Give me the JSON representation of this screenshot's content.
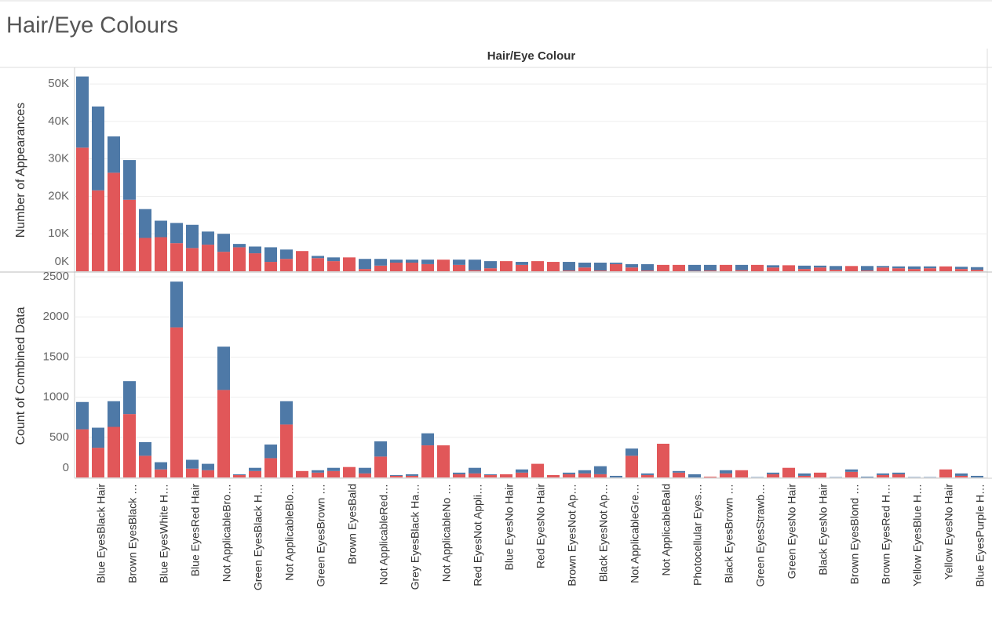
{
  "title": "Hair/Eye Colours",
  "header": "Hair/Eye Colour",
  "chart_data": [
    {
      "type": "bar",
      "stacked": true,
      "ylabel": "Number of Appearances",
      "ylim": [
        0,
        54000
      ],
      "yticks": [
        {
          "value": 0,
          "label": "0K"
        },
        {
          "value": 10000,
          "label": "10K"
        },
        {
          "value": 20000,
          "label": "20K"
        },
        {
          "value": 30000,
          "label": "30K"
        },
        {
          "value": 40000,
          "label": "40K"
        },
        {
          "value": 50000,
          "label": "50K"
        }
      ],
      "grid": true,
      "series": [
        {
          "color": "#e15759",
          "values": [
            33000,
            21600,
            26300,
            19100,
            8900,
            9100,
            7500,
            6200,
            7100,
            5200,
            6400,
            4800,
            2500,
            3300,
            5400,
            3500,
            2700,
            3700,
            600,
            1500,
            2300,
            2300,
            1900,
            3100,
            1700,
            300,
            800,
            2700,
            1700,
            2700,
            2500,
            200,
            1000,
            200,
            1900,
            1000,
            200,
            1700,
            1700,
            100,
            200,
            1700,
            300,
            1700,
            1000,
            1600,
            600,
            1000,
            400,
            1400,
            200,
            1000,
            800,
            600,
            800,
            1300,
            600,
            400
          ]
        },
        {
          "color": "#4e79a7",
          "values": [
            19000,
            22400,
            9700,
            10600,
            7700,
            4400,
            5400,
            6200,
            3500,
            4800,
            900,
            1800,
            3900,
            2500,
            0,
            600,
            1000,
            0,
            2700,
            1800,
            800,
            800,
            1200,
            0,
            1400,
            2800,
            1900,
            0,
            800,
            0,
            0,
            2300,
            1300,
            2100,
            400,
            900,
            1700,
            0,
            0,
            1600,
            1500,
            0,
            1400,
            0,
            600,
            0,
            900,
            500,
            1000,
            0,
            1200,
            400,
            500,
            700,
            500,
            0,
            600,
            700
          ]
        }
      ]
    },
    {
      "type": "bar",
      "stacked": true,
      "ylabel": "Count of Combined Data",
      "ylim": [
        0,
        2530
      ],
      "yticks": [
        0,
        500,
        1000,
        1500,
        2000,
        2500
      ],
      "grid": true,
      "categories": [
        null,
        "Blue EyesBlack Hair",
        null,
        "Brown EyesBlack …",
        null,
        "Blue EyesWhite H…",
        null,
        "Blue EyesRed Hair",
        null,
        "Not ApplicableBro…",
        null,
        "Green EyesBlack H…",
        null,
        "Not ApplicableBlo…",
        null,
        "Green EyesBrown …",
        null,
        "Brown EyesBald",
        null,
        "Not ApplicableRed…",
        null,
        "Grey EyesBlack Ha…",
        null,
        "Not ApplicableNo …",
        null,
        "Red EyesNot Appli…",
        null,
        "Blue EyesNo Hair",
        null,
        "Red EyesNo Hair",
        null,
        "Brown EyesNot Ap…",
        null,
        "Black EyesNot Ap…",
        null,
        "Not ApplicableGre…",
        null,
        "Not ApplicableBald",
        null,
        "Photocellular Eyes…",
        null,
        "Black EyesBrown …",
        null,
        "Green EyesStrawb…",
        null,
        "Green EyesNo Hair",
        null,
        "Black EyesNo Hair",
        null,
        "Brown EyesBlond …",
        null,
        "Brown EyesRed H…",
        null,
        "Yellow EyesBlue H…",
        null,
        "Yellow EyesNo Hair",
        null,
        "Blue EyesPurple H…"
      ],
      "series": [
        {
          "color": "#e15759",
          "values": [
            600,
            370,
            630,
            790,
            270,
            100,
            1870,
            110,
            90,
            1090,
            30,
            80,
            240,
            660,
            80,
            60,
            80,
            130,
            50,
            260,
            20,
            20,
            400,
            400,
            40,
            50,
            30,
            40,
            60,
            170,
            30,
            40,
            50,
            40,
            0,
            270,
            30,
            420,
            60,
            0,
            10,
            50,
            90,
            0,
            40,
            120,
            20,
            60,
            0,
            70,
            0,
            30,
            40,
            0,
            0,
            100,
            20,
            0
          ]
        },
        {
          "color": "#4e79a7",
          "values": [
            340,
            250,
            320,
            410,
            170,
            90,
            570,
            110,
            80,
            540,
            10,
            40,
            170,
            290,
            0,
            30,
            40,
            0,
            70,
            190,
            10,
            20,
            150,
            0,
            20,
            70,
            10,
            0,
            40,
            0,
            0,
            20,
            40,
            100,
            20,
            90,
            20,
            0,
            20,
            40,
            0,
            40,
            0,
            5,
            20,
            0,
            30,
            0,
            5,
            30,
            10,
            20,
            20,
            5,
            5,
            0,
            30,
            20
          ]
        }
      ]
    }
  ]
}
